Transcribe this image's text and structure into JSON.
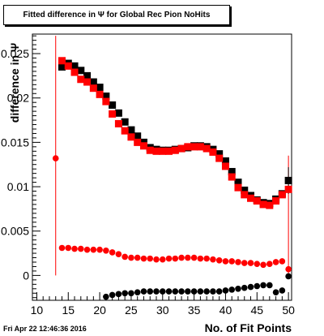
{
  "title": "Fitted difference in Ψ  for Global Rec Pion NoHits",
  "date_stamp": "Fri Apr 22 12:46:36 2016",
  "chart_data": {
    "type": "scatter",
    "title": "Fitted difference in Ψ  for Global Rec Pion NoHits",
    "xlabel": "No. of Fit Points",
    "ylabel": "difference in Ψ",
    "xlim": [
      9.3,
      50.5
    ],
    "ylim": [
      -0.0028,
      0.0272
    ],
    "x_ticks": [
      10,
      15,
      20,
      25,
      30,
      35,
      40,
      45,
      50
    ],
    "x_tick_labels": [
      "10",
      "15",
      "20",
      "25",
      "30",
      "35",
      "40",
      "45",
      "50"
    ],
    "y_ticks": [
      0,
      0.005,
      0.01,
      0.015,
      0.02,
      0.025
    ],
    "y_tick_labels": [
      "0",
      "0.005",
      "0.01",
      "0.015",
      "0.02",
      "0.025"
    ],
    "colors": {
      "black": "#000000",
      "red": "#ff0000"
    },
    "series": [
      {
        "color": "#000000",
        "marker": "square",
        "x": [
          14,
          15,
          16,
          17,
          18,
          19,
          20,
          21,
          22,
          23,
          24,
          25,
          26,
          27,
          28,
          29,
          30,
          31,
          32,
          33,
          34,
          35,
          36,
          37,
          38,
          39,
          40,
          41,
          42,
          43,
          44,
          45,
          46,
          47,
          48,
          49,
          50
        ],
        "y": [
          0.0235,
          0.0239,
          0.0236,
          0.0231,
          0.0225,
          0.0218,
          0.0212,
          0.0202,
          0.0192,
          0.0183,
          0.0173,
          0.0164,
          0.0157,
          0.015,
          0.0144,
          0.0142,
          0.0141,
          0.0141,
          0.0142,
          0.0143,
          0.0144,
          0.0146,
          0.0146,
          0.0145,
          0.0142,
          0.0137,
          0.0129,
          0.0117,
          0.0105,
          0.0096,
          0.009,
          0.0085,
          0.0082,
          0.0081,
          0.0086,
          0.0092,
          0.0107
        ]
      },
      {
        "color": "#ff0000",
        "marker": "square",
        "x": [
          14,
          15,
          16,
          17,
          18,
          19,
          20,
          21,
          22,
          23,
          24,
          25,
          26,
          27,
          28,
          29,
          30,
          31,
          32,
          33,
          34,
          35,
          36,
          37,
          38,
          39,
          40,
          41,
          42,
          43,
          44,
          45,
          46,
          47,
          48,
          49,
          50
        ],
        "y": [
          0.0242,
          0.0236,
          0.0229,
          0.0221,
          0.0218,
          0.0211,
          0.0204,
          0.0196,
          0.0182,
          0.0171,
          0.0163,
          0.0156,
          0.015,
          0.0146,
          0.0141,
          0.014,
          0.014,
          0.014,
          0.0141,
          0.0143,
          0.0145,
          0.0145,
          0.0145,
          0.0143,
          0.0139,
          0.0132,
          0.0123,
          0.0111,
          0.0099,
          0.0091,
          0.0087,
          0.0084,
          0.008,
          0.0079,
          0.0084,
          0.0091,
          0.0097
        ]
      },
      {
        "color": "#ff0000",
        "marker": "circle",
        "x": [
          13,
          14,
          15,
          16,
          17,
          18,
          19,
          20,
          21,
          22,
          23,
          24,
          25,
          26,
          27,
          28,
          29,
          30,
          31,
          32,
          33,
          34,
          35,
          36,
          37,
          38,
          39,
          40,
          41,
          42,
          43,
          44,
          45,
          46,
          47,
          48,
          49,
          50
        ],
        "y": [
          0.0132,
          0.0031,
          0.0031,
          0.003,
          0.003,
          0.0029,
          0.0029,
          0.0029,
          0.0028,
          0.0026,
          0.0024,
          0.0021,
          0.002,
          0.002,
          0.0019,
          0.0019,
          0.0018,
          0.0018,
          0.0019,
          0.0019,
          0.002,
          0.002,
          0.002,
          0.0019,
          0.0019,
          0.0018,
          0.0017,
          0.0016,
          0.0016,
          0.0015,
          0.0014,
          0.0014,
          0.0013,
          0.0012,
          0.0013,
          0.0015,
          0.0016,
          0.0007
        ]
      },
      {
        "color": "#000000",
        "marker": "circle",
        "x": [
          21,
          22,
          23,
          24,
          25,
          26,
          27,
          28,
          29,
          30,
          31,
          32,
          33,
          34,
          35,
          36,
          37,
          38,
          39,
          40,
          41,
          42,
          43,
          44,
          45,
          46,
          47,
          48,
          49,
          50
        ],
        "y": [
          -0.0024,
          -0.0022,
          -0.0021,
          -0.002,
          -0.002,
          -0.0019,
          -0.0018,
          -0.0018,
          -0.0018,
          -0.0018,
          -0.0018,
          -0.0018,
          -0.0018,
          -0.0018,
          -0.0018,
          -0.0018,
          -0.0018,
          -0.0018,
          -0.0018,
          -0.0017,
          -0.0016,
          -0.0015,
          -0.0014,
          -0.0013,
          -0.0012,
          -0.0011,
          -0.0011,
          -0.0019,
          -0.0017,
          -0.0001
        ]
      }
    ],
    "error_bars": [
      {
        "color": "#ff0000",
        "x": 13,
        "y_low": 0.0,
        "y_high": 0.027
      },
      {
        "color": "#ff0000",
        "x": 50,
        "y_low": 0.0,
        "y_high": 0.0135
      },
      {
        "color": "#000000",
        "x": 50,
        "y_low": 0.0092,
        "y_high": 0.0122
      }
    ]
  }
}
